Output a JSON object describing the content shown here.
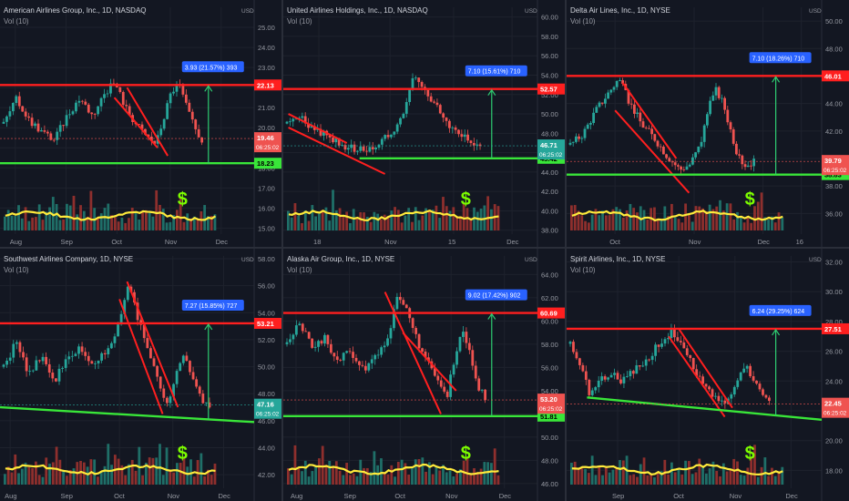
{
  "colors": {
    "bg": "#131722",
    "grid": "#1e222d",
    "up": "#26a69a",
    "down": "#ef5350",
    "resistance": "#ff1f1f",
    "support": "#39e639",
    "measure": "#2ecc71",
    "dollar": "#7cfc00",
    "vol_ma": "#ffeb3b",
    "tag_blue": "#2962ff",
    "axis_text": "#9598a1",
    "text": "#d1d4dc"
  },
  "chart_data": [
    {
      "type": "candlestick",
      "title": "American Airlines Group, Inc., 1D, NASDAQ",
      "indicator": "Vol (10)",
      "currency": "USD",
      "y_ticks": [
        "25.00",
        "24.00",
        "23.00",
        "22.00",
        "21.00",
        "20.00",
        "19.00",
        "18.00",
        "17.00",
        "16.00",
        "15.00"
      ],
      "ylim": [
        14.7,
        26.0
      ],
      "x_ticks": [
        "Aug",
        "Sep",
        "Oct",
        "Nov",
        "Dec"
      ],
      "x_tick_pos": [
        0.06,
        0.26,
        0.46,
        0.67,
        0.87
      ],
      "resistance": 22.13,
      "support": 18.23,
      "tags": {
        "resistance": "22.13",
        "support": "18.23",
        "price": "19.46",
        "countdown": "06:25:02"
      },
      "measure_label": "3.93 (21.57%) 393",
      "wedge": [
        [
          0.45,
          21.5
        ],
        [
          0.62,
          19.0
        ],
        [
          0.5,
          22.0
        ],
        [
          0.66,
          18.6
        ]
      ],
      "path": [
        [
          0,
          20.2
        ],
        [
          0.05,
          21.4
        ],
        [
          0.1,
          20.4
        ],
        [
          0.15,
          19.8
        ],
        [
          0.2,
          19.4
        ],
        [
          0.25,
          20.6
        ],
        [
          0.3,
          21.5
        ],
        [
          0.35,
          20.6
        ],
        [
          0.4,
          21.8
        ],
        [
          0.44,
          22.2
        ],
        [
          0.48,
          21.0
        ],
        [
          0.52,
          20.2
        ],
        [
          0.56,
          19.6
        ],
        [
          0.6,
          19.2
        ],
        [
          0.63,
          20.5
        ],
        [
          0.66,
          21.8
        ],
        [
          0.69,
          22.2
        ],
        [
          0.72,
          21.0
        ],
        [
          0.75,
          20.0
        ],
        [
          0.78,
          19.4
        ]
      ],
      "price": 19.46
    },
    {
      "type": "candlestick",
      "title": "United Airlines Holdings, Inc., 1D, NASDAQ",
      "indicator": "Vol (10)",
      "currency": "USD",
      "y_ticks": [
        "60.00",
        "58.00",
        "56.00",
        "54.00",
        "52.00",
        "50.00",
        "48.00",
        "46.00",
        "44.00",
        "42.00",
        "40.00",
        "38.00"
      ],
      "ylim": [
        37.6,
        61.0
      ],
      "x_ticks": [
        "18",
        "Nov",
        "15",
        "Dec"
      ],
      "x_tick_pos": [
        0.14,
        0.42,
        0.67,
        0.9
      ],
      "resistance": 52.57,
      "support": 45.42,
      "tags": {
        "resistance": "52.57",
        "support": "45.42",
        "price": "46.71",
        "countdown": "06:25:02"
      },
      "measure_label": "7.10 (15.61%) 710",
      "wedge": [
        [
          0.02,
          50.0
        ],
        [
          0.25,
          47.0
        ],
        [
          0.02,
          48.6
        ],
        [
          0.4,
          43.8
        ]
      ],
      "path": [
        [
          0,
          49.0
        ],
        [
          0.05,
          49.6
        ],
        [
          0.1,
          48.5
        ],
        [
          0.15,
          47.8
        ],
        [
          0.2,
          47.0
        ],
        [
          0.25,
          46.5
        ],
        [
          0.3,
          46.3
        ],
        [
          0.35,
          46.8
        ],
        [
          0.38,
          47.5
        ],
        [
          0.42,
          48.5
        ],
        [
          0.45,
          49.5
        ],
        [
          0.48,
          52.0
        ],
        [
          0.5,
          54.0
        ],
        [
          0.52,
          53.0
        ],
        [
          0.56,
          51.5
        ],
        [
          0.6,
          50.5
        ],
        [
          0.65,
          48.5
        ],
        [
          0.7,
          47.5
        ],
        [
          0.73,
          46.8
        ],
        [
          0.76,
          46.7
        ]
      ],
      "price": 46.71
    },
    {
      "type": "candlestick",
      "title": "Delta Air Lines, Inc., 1D, NYSE",
      "indicator": "Vol (10)",
      "currency": "USD",
      "y_ticks": [
        "50.00",
        "48.00",
        "46.00",
        "44.00",
        "42.00",
        "40.00",
        "38.00",
        "36.00"
      ],
      "ylim": [
        34.5,
        51.0
      ],
      "x_ticks": [
        "Oct",
        "Nov",
        "Dec",
        "16"
      ],
      "x_tick_pos": [
        0.19,
        0.5,
        0.77,
        0.92
      ],
      "resistance": 46.01,
      "support": 38.83,
      "tags": {
        "resistance": "46.01",
        "support": "38.83",
        "price": "39.79",
        "countdown": "06:25:02"
      },
      "measure_label": "7.10 (18.26%) 710",
      "wedge": [
        [
          0.19,
          43.5
        ],
        [
          0.48,
          37.5
        ],
        [
          0.22,
          45.5
        ],
        [
          0.43,
          40.0
        ]
      ],
      "path": [
        [
          0,
          41.0
        ],
        [
          0.05,
          41.8
        ],
        [
          0.1,
          43.5
        ],
        [
          0.15,
          44.8
        ],
        [
          0.19,
          45.8
        ],
        [
          0.23,
          44.2
        ],
        [
          0.28,
          42.5
        ],
        [
          0.33,
          41.5
        ],
        [
          0.38,
          40.2
        ],
        [
          0.43,
          39.2
        ],
        [
          0.47,
          39.6
        ],
        [
          0.51,
          41.0
        ],
        [
          0.54,
          43.5
        ],
        [
          0.57,
          45.0
        ],
        [
          0.6,
          44.0
        ],
        [
          0.63,
          42.0
        ],
        [
          0.66,
          40.0
        ],
        [
          0.69,
          39.5
        ],
        [
          0.72,
          39.8
        ]
      ],
      "price": 39.79
    },
    {
      "type": "candlestick",
      "title": "Southwest Airlines Company, 1D, NYSE",
      "indicator": "Vol (10)",
      "currency": "USD",
      "y_ticks": [
        "58.00",
        "56.00",
        "54.00",
        "52.00",
        "50.00",
        "48.00",
        "46.00",
        "44.00",
        "42.00"
      ],
      "ylim": [
        41.0,
        58.2
      ],
      "x_ticks": [
        "Aug",
        "Sep",
        "Oct",
        "Nov",
        "Dec"
      ],
      "x_tick_pos": [
        0.04,
        0.26,
        0.47,
        0.68,
        0.88
      ],
      "resistance": 53.21,
      "support": null,
      "support_line": [
        [
          0.0,
          47.0
        ],
        [
          1.0,
          45.9
        ]
      ],
      "tags": {
        "resistance": "53.21",
        "price": "47.16",
        "countdown": "06:25:02"
      },
      "measure_label": "7.27 (15.85%) 727",
      "wedge": [
        [
          0.47,
          55.0
        ],
        [
          0.64,
          46.5
        ],
        [
          0.5,
          56.3
        ],
        [
          0.7,
          47.0
        ]
      ],
      "path": [
        [
          0,
          50.0
        ],
        [
          0.05,
          51.8
        ],
        [
          0.1,
          49.5
        ],
        [
          0.15,
          50.8
        ],
        [
          0.2,
          49.0
        ],
        [
          0.25,
          50.5
        ],
        [
          0.3,
          51.5
        ],
        [
          0.35,
          50.3
        ],
        [
          0.4,
          51.0
        ],
        [
          0.45,
          53.0
        ],
        [
          0.49,
          56.0
        ],
        [
          0.53,
          53.5
        ],
        [
          0.57,
          51.0
        ],
        [
          0.61,
          49.0
        ],
        [
          0.64,
          47.0
        ],
        [
          0.68,
          49.5
        ],
        [
          0.71,
          51.0
        ],
        [
          0.74,
          49.0
        ],
        [
          0.78,
          47.5
        ],
        [
          0.81,
          47.2
        ]
      ],
      "price": 47.16
    },
    {
      "type": "candlestick",
      "title": "Alaska Air Group, Inc., 1D, NYSE",
      "indicator": "Vol (10)",
      "currency": "USD",
      "y_ticks": [
        "64.00",
        "62.00",
        "60.00",
        "58.00",
        "56.00",
        "54.00",
        "52.00",
        "50.00",
        "48.00",
        "46.00"
      ],
      "ylim": [
        45.6,
        65.6
      ],
      "x_ticks": [
        "Aug",
        "Sep",
        "Oct",
        "Nov",
        "Dec"
      ],
      "x_tick_pos": [
        0.05,
        0.26,
        0.46,
        0.66,
        0.87
      ],
      "resistance": 60.69,
      "support": 51.81,
      "tags": {
        "resistance": "60.69",
        "support": "51.81",
        "price": "53.20",
        "countdown": "06:25:02"
      },
      "measure_label": "9.02 (17.42%) 902",
      "wedge": [
        [
          0.4,
          62.5
        ],
        [
          0.62,
          52.0
        ],
        [
          0.47,
          59.0
        ],
        [
          0.68,
          54.0
        ]
      ],
      "path": [
        [
          0,
          58.0
        ],
        [
          0.05,
          60.0
        ],
        [
          0.1,
          57.5
        ],
        [
          0.15,
          58.5
        ],
        [
          0.2,
          56.5
        ],
        [
          0.25,
          57.5
        ],
        [
          0.3,
          55.8
        ],
        [
          0.35,
          57.0
        ],
        [
          0.4,
          58.5
        ],
        [
          0.43,
          62.5
        ],
        [
          0.47,
          61.0
        ],
        [
          0.51,
          58.5
        ],
        [
          0.55,
          56.5
        ],
        [
          0.59,
          55.0
        ],
        [
          0.63,
          53.5
        ],
        [
          0.66,
          57.0
        ],
        [
          0.69,
          59.5
        ],
        [
          0.72,
          57.0
        ],
        [
          0.75,
          54.5
        ],
        [
          0.78,
          53.2
        ]
      ],
      "price": 53.2
    },
    {
      "type": "candlestick",
      "title": "Spirit Airlines, Inc., 1D, NYSE",
      "indicator": "Vol (10)",
      "currency": "USD",
      "y_ticks": [
        "32.00",
        "30.00",
        "28.00",
        "26.00",
        "24.00",
        "22.00",
        "20.00",
        "18.00"
      ],
      "ylim": [
        16.8,
        32.4
      ],
      "x_ticks": [
        "Sep",
        "Oct",
        "Nov",
        "Dec"
      ],
      "x_tick_pos": [
        0.2,
        0.44,
        0.66,
        0.88
      ],
      "resistance": 27.51,
      "support": null,
      "support_line": [
        [
          0.08,
          22.9
        ],
        [
          1.0,
          21.4
        ]
      ],
      "tags": {
        "resistance": "27.51",
        "price": "22.45",
        "countdown": "06:25:02"
      },
      "measure_label": "6.24 (29.25%) 624",
      "wedge": [
        [
          0.4,
          27.0
        ],
        [
          0.62,
          21.6
        ],
        [
          0.44,
          27.5
        ],
        [
          0.65,
          22.2
        ]
      ],
      "path": [
        [
          0,
          26.5
        ],
        [
          0.04,
          25.0
        ],
        [
          0.08,
          23.0
        ],
        [
          0.12,
          24.0
        ],
        [
          0.16,
          24.5
        ],
        [
          0.2,
          24.0
        ],
        [
          0.25,
          24.8
        ],
        [
          0.3,
          25.5
        ],
        [
          0.35,
          26.5
        ],
        [
          0.4,
          27.3
        ],
        [
          0.44,
          26.5
        ],
        [
          0.48,
          25.0
        ],
        [
          0.52,
          24.0
        ],
        [
          0.56,
          23.0
        ],
        [
          0.6,
          22.4
        ],
        [
          0.64,
          23.5
        ],
        [
          0.68,
          25.0
        ],
        [
          0.71,
          24.5
        ],
        [
          0.75,
          23.5
        ],
        [
          0.78,
          22.5
        ]
      ],
      "price": 22.45
    }
  ]
}
